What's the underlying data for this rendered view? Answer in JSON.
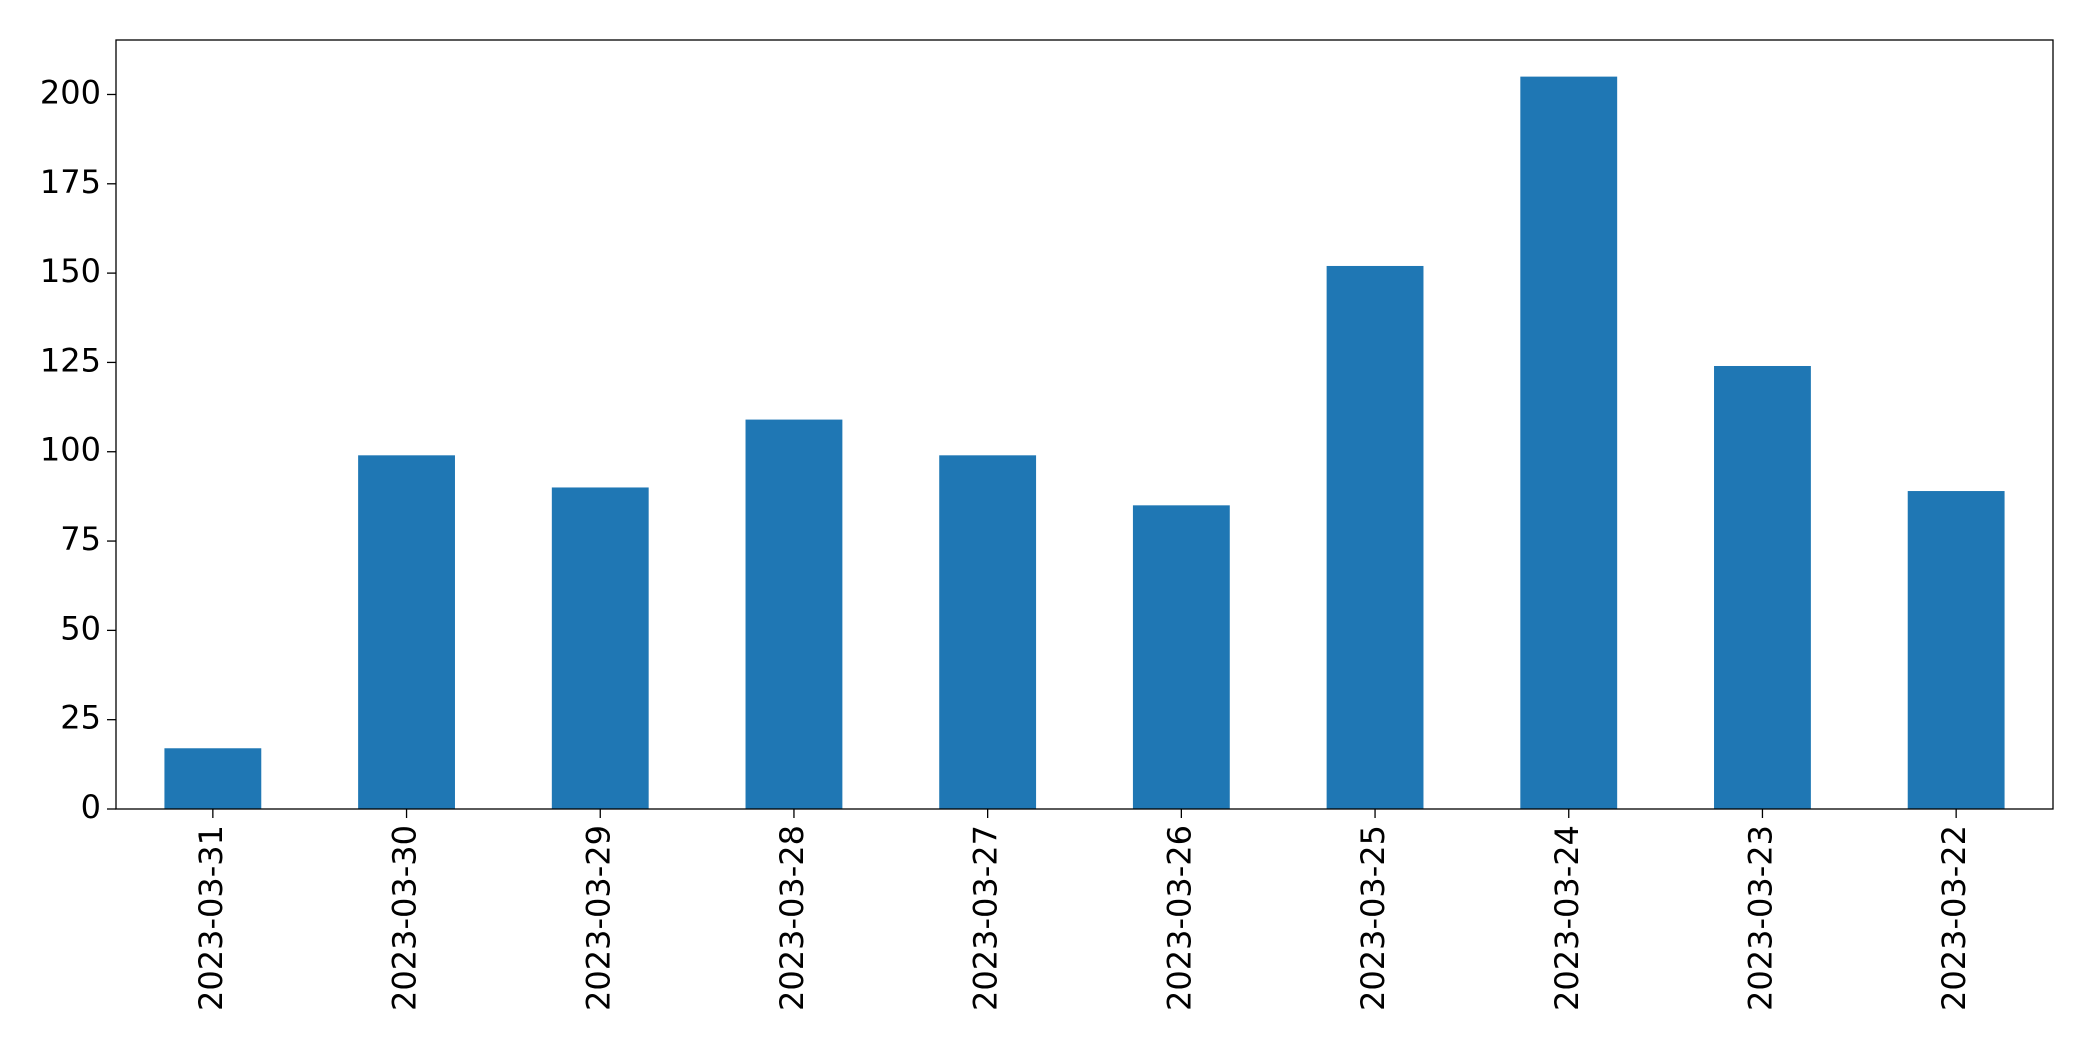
{
  "chart_data": {
    "type": "bar",
    "categories": [
      "2023-03-31",
      "2023-03-30",
      "2023-03-29",
      "2023-03-28",
      "2023-03-27",
      "2023-03-26",
      "2023-03-25",
      "2023-03-24",
      "2023-03-23",
      "2023-03-22"
    ],
    "values": [
      17,
      99,
      90,
      109,
      99,
      85,
      152,
      205,
      124,
      89
    ],
    "color": "#1f77b4",
    "ylim": [
      0,
      215.25
    ],
    "yticks": [
      0,
      25,
      50,
      75,
      100,
      125,
      150,
      175,
      200
    ],
    "grid": false
  }
}
